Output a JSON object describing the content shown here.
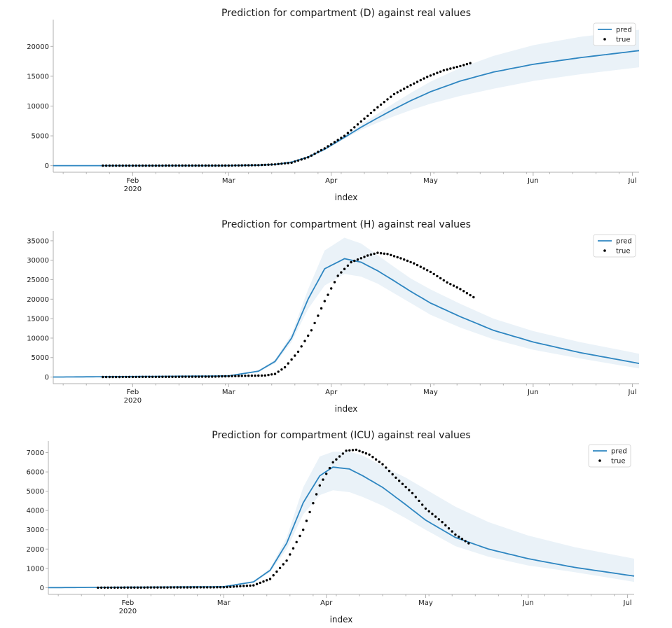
{
  "colors": {
    "pred": "#2e86c1",
    "band": "#eaf2f8",
    "true": "#000000",
    "axis": "#b0b0b0",
    "text": "#1a1a1a"
  },
  "chart_data": [
    {
      "type": "line",
      "title": "Prediction for compartment (D) against real values",
      "xlabel": "index",
      "ylabel": "",
      "x_range": [
        "2020-01-08",
        "2020-07-03"
      ],
      "ylim": [
        -1100,
        24500
      ],
      "yticks": [
        0,
        5000,
        10000,
        15000,
        20000
      ],
      "xticks": [
        {
          "date": "2020-02-01",
          "label": "Feb",
          "sub": "2020"
        },
        {
          "date": "2020-03-01",
          "label": "Mar",
          "sub": ""
        },
        {
          "date": "2020-04-01",
          "label": "Apr",
          "sub": ""
        },
        {
          "date": "2020-05-01",
          "label": "May",
          "sub": ""
        },
        {
          "date": "2020-06-01",
          "label": "Jun",
          "sub": ""
        },
        {
          "date": "2020-07-01",
          "label": "Jul",
          "sub": ""
        }
      ],
      "legend": {
        "position": "top-right",
        "entries": [
          "pred",
          "true"
        ]
      },
      "grid": false,
      "series": [
        {
          "name": "pred",
          "x": [
            "2020-01-08",
            "2020-03-01",
            "2020-03-10",
            "2020-03-15",
            "2020-03-20",
            "2020-03-25",
            "2020-03-30",
            "2020-04-05",
            "2020-04-10",
            "2020-04-15",
            "2020-04-20",
            "2020-04-25",
            "2020-05-01",
            "2020-05-10",
            "2020-05-20",
            "2020-06-01",
            "2020-06-15",
            "2020-07-03"
          ],
          "y": [
            0,
            10,
            80,
            200,
            600,
            1450,
            2750,
            4750,
            6450,
            8000,
            9500,
            10900,
            12400,
            14200,
            15700,
            17000,
            18100,
            19300
          ],
          "lower": [
            0,
            8,
            70,
            180,
            550,
            1300,
            2550,
            4500,
            6000,
            7200,
            8300,
            9300,
            10400,
            11700,
            12900,
            14200,
            15300,
            16500
          ],
          "upper": [
            0,
            12,
            90,
            220,
            650,
            1600,
            2950,
            5050,
            6900,
            8700,
            10500,
            12200,
            14100,
            16400,
            18400,
            20200,
            21600,
            22800
          ]
        },
        {
          "name": "true",
          "x_start": "2020-01-23",
          "x_end": "2020-05-13",
          "anchors": [
            [
              "2020-01-23",
              0
            ],
            [
              "2020-03-01",
              20
            ],
            [
              "2020-03-10",
              90
            ],
            [
              "2020-03-15",
              220
            ],
            [
              "2020-03-20",
              500
            ],
            [
              "2020-03-25",
              1400
            ],
            [
              "2020-03-30",
              2900
            ],
            [
              "2020-04-05",
              5000
            ],
            [
              "2020-04-10",
              7400
            ],
            [
              "2020-04-15",
              9800
            ],
            [
              "2020-04-20",
              12000
            ],
            [
              "2020-04-25",
              13500
            ],
            [
              "2020-04-30",
              14900
            ],
            [
              "2020-05-05",
              16000
            ],
            [
              "2020-05-10",
              16700
            ],
            [
              "2020-05-13",
              17200
            ]
          ]
        }
      ]
    },
    {
      "type": "line",
      "title": "Prediction for compartment (H) against real values",
      "xlabel": "index",
      "ylabel": "",
      "x_range": [
        "2020-01-08",
        "2020-07-03"
      ],
      "ylim": [
        -1700,
        37500
      ],
      "yticks": [
        0,
        5000,
        10000,
        15000,
        20000,
        25000,
        30000,
        35000
      ],
      "xticks": [
        {
          "date": "2020-02-01",
          "label": "Feb",
          "sub": "2020"
        },
        {
          "date": "2020-03-01",
          "label": "Mar",
          "sub": ""
        },
        {
          "date": "2020-04-01",
          "label": "Apr",
          "sub": ""
        },
        {
          "date": "2020-05-01",
          "label": "May",
          "sub": ""
        },
        {
          "date": "2020-06-01",
          "label": "Jun",
          "sub": ""
        },
        {
          "date": "2020-07-01",
          "label": "Jul",
          "sub": ""
        }
      ],
      "legend": {
        "position": "top-right",
        "entries": [
          "pred",
          "true"
        ]
      },
      "grid": false,
      "series": [
        {
          "name": "pred",
          "x": [
            "2020-01-08",
            "2020-03-01",
            "2020-03-10",
            "2020-03-15",
            "2020-03-20",
            "2020-03-25",
            "2020-03-30",
            "2020-04-05",
            "2020-04-10",
            "2020-04-15",
            "2020-04-20",
            "2020-04-25",
            "2020-05-01",
            "2020-05-10",
            "2020-05-20",
            "2020-06-01",
            "2020-06-15",
            "2020-07-03"
          ],
          "y": [
            0,
            300,
            1500,
            4000,
            10000,
            20000,
            27800,
            30400,
            29500,
            27300,
            24700,
            22000,
            19000,
            15500,
            12000,
            9000,
            6300,
            3500
          ],
          "lower": [
            0,
            250,
            1300,
            3500,
            9000,
            17500,
            23500,
            26500,
            25800,
            24000,
            21500,
            19000,
            16000,
            12700,
            9700,
            7000,
            4800,
            2200
          ],
          "upper": [
            0,
            350,
            1700,
            4500,
            11000,
            22500,
            32500,
            35800,
            34300,
            31300,
            28300,
            25300,
            22500,
            18800,
            15000,
            11800,
            9000,
            6000
          ]
        },
        {
          "name": "true",
          "x_start": "2020-01-23",
          "x_end": "2020-05-14",
          "anchors": [
            [
              "2020-01-23",
              0
            ],
            [
              "2020-02-25",
              100
            ],
            [
              "2020-03-05",
              300
            ],
            [
              "2020-03-12",
              400
            ],
            [
              "2020-03-15",
              800
            ],
            [
              "2020-03-18",
              2500
            ],
            [
              "2020-03-22",
              6500
            ],
            [
              "2020-03-26",
              12000
            ],
            [
              "2020-03-30",
              19500
            ],
            [
              "2020-04-03",
              26000
            ],
            [
              "2020-04-07",
              29500
            ],
            [
              "2020-04-12",
              31200
            ],
            [
              "2020-04-15",
              31900
            ],
            [
              "2020-04-18",
              31600
            ],
            [
              "2020-04-22",
              30500
            ],
            [
              "2020-04-26",
              29200
            ],
            [
              "2020-05-01",
              27000
            ],
            [
              "2020-05-06",
              24300
            ],
            [
              "2020-05-10",
              22600
            ],
            [
              "2020-05-14",
              20500
            ]
          ]
        }
      ]
    },
    {
      "type": "line",
      "title": "Prediction for compartment (ICU) against real values",
      "xlabel": "index",
      "ylabel": "",
      "x_range": [
        "2020-01-08",
        "2020-07-03"
      ],
      "ylim": [
        -350,
        7600
      ],
      "yticks": [
        0,
        1000,
        2000,
        3000,
        4000,
        5000,
        6000,
        7000
      ],
      "xticks": [
        {
          "date": "2020-02-01",
          "label": "Feb",
          "sub": "2020"
        },
        {
          "date": "2020-03-01",
          "label": "Mar",
          "sub": ""
        },
        {
          "date": "2020-04-01",
          "label": "Apr",
          "sub": ""
        },
        {
          "date": "2020-05-01",
          "label": "May",
          "sub": ""
        },
        {
          "date": "2020-06-01",
          "label": "Jun",
          "sub": ""
        },
        {
          "date": "2020-07-01",
          "label": "Jul",
          "sub": ""
        }
      ],
      "legend": {
        "position": "top-right",
        "entries": [
          "pred",
          "true"
        ]
      },
      "grid": false,
      "series": [
        {
          "name": "pred",
          "x": [
            "2020-01-08",
            "2020-03-01",
            "2020-03-10",
            "2020-03-15",
            "2020-03-20",
            "2020-03-25",
            "2020-03-30",
            "2020-04-03",
            "2020-04-08",
            "2020-04-12",
            "2020-04-18",
            "2020-04-25",
            "2020-05-01",
            "2020-05-10",
            "2020-05-20",
            "2020-06-01",
            "2020-06-15",
            "2020-07-03"
          ],
          "y": [
            0,
            50,
            300,
            900,
            2300,
            4400,
            5800,
            6250,
            6150,
            5800,
            5200,
            4300,
            3500,
            2600,
            2000,
            1500,
            1050,
            600
          ],
          "lower": [
            0,
            40,
            250,
            800,
            2000,
            3800,
            4800,
            5050,
            4950,
            4700,
            4250,
            3600,
            3000,
            2150,
            1600,
            1150,
            800,
            300
          ],
          "upper": [
            0,
            60,
            350,
            1000,
            2600,
            5200,
            6800,
            7050,
            7050,
            6850,
            6300,
            5700,
            5100,
            4200,
            3400,
            2700,
            2100,
            1500
          ]
        },
        {
          "name": "true",
          "x_start": "2020-01-23",
          "x_end": "2020-05-14",
          "anchors": [
            [
              "2020-01-23",
              0
            ],
            [
              "2020-03-01",
              20
            ],
            [
              "2020-03-10",
              120
            ],
            [
              "2020-03-15",
              450
            ],
            [
              "2020-03-20",
              1400
            ],
            [
              "2020-03-25",
              3000
            ],
            [
              "2020-03-30",
              5300
            ],
            [
              "2020-04-03",
              6500
            ],
            [
              "2020-04-07",
              7100
            ],
            [
              "2020-04-10",
              7150
            ],
            [
              "2020-04-14",
              6900
            ],
            [
              "2020-04-18",
              6400
            ],
            [
              "2020-04-22",
              5700
            ],
            [
              "2020-04-27",
              4900
            ],
            [
              "2020-05-01",
              4100
            ],
            [
              "2020-05-06",
              3400
            ],
            [
              "2020-05-10",
              2750
            ],
            [
              "2020-05-14",
              2300
            ]
          ]
        }
      ]
    }
  ]
}
